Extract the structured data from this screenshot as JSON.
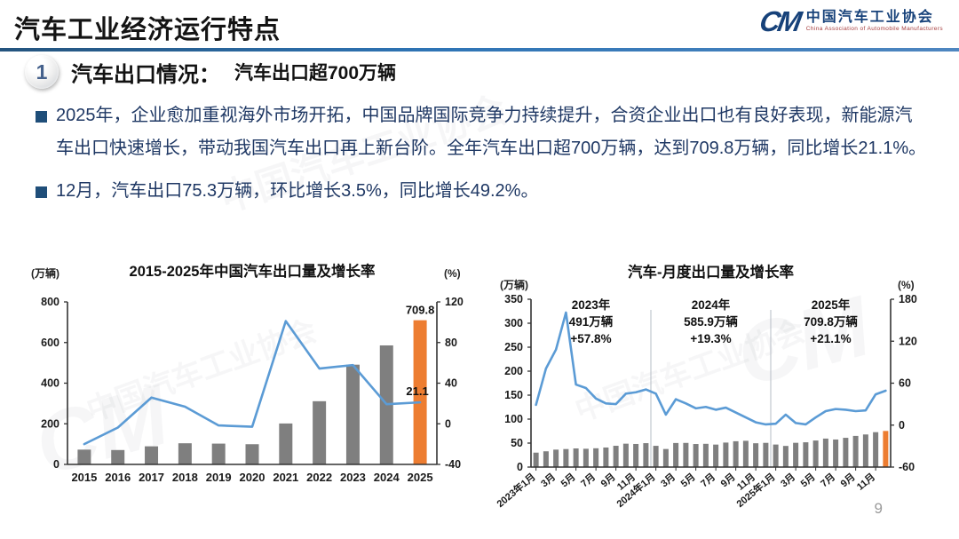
{
  "header": {
    "title": "汽车工业经济运行特点"
  },
  "logo": {
    "mark": "CM",
    "name_cn": "中国汽车工业协会",
    "name_en": "China Association of Automobile Manufacturers"
  },
  "section": {
    "number": "1",
    "title": "汽车出口情况：",
    "subtitle": "汽车出口超700万辆"
  },
  "bullets": [
    {
      "text": "2025年，企业愈加重视海外市场开拓，中国品牌国际竞争力持续提升，合资企业出口也有良好表现，新能源汽车出口快速增长，带动我国汽车出口再上新台阶。全年汽车出口超700万辆，达到709.8万辆，同比增长21.1%。"
    },
    {
      "text": "12月，汽车出口75.3万辆，环比增长3.5%，同比增长49.2%。"
    }
  ],
  "watermark_text": "中国汽车工业协会",
  "page_number": "9",
  "colors": {
    "accent_blue": "#2e74b5",
    "bar_gray": "#7f7f7f",
    "bar_orange": "#ed7d31",
    "line_blue": "#5b9bd5",
    "axis": "#333333",
    "separator": "#b5bcc4",
    "text_navy": "#1f3864"
  },
  "chart_data": [
    {
      "type": "bar",
      "subtype": "bar+line dual axis",
      "title": "2015-2025年中国汽车出口量及增长率",
      "y1_label": "(万辆)",
      "y2_label": "(%)",
      "categories": [
        "2015",
        "2016",
        "2017",
        "2018",
        "2019",
        "2020",
        "2021",
        "2022",
        "2023",
        "2024",
        "2025"
      ],
      "series": [
        {
          "name": "出口量(万辆)",
          "type": "bar",
          "axis": "y1",
          "values": [
            72.8,
            70.8,
            89.1,
            104.1,
            102.4,
            99.5,
            201.5,
            311.1,
            491.0,
            585.9,
            709.8
          ]
        },
        {
          "name": "增长率(%)",
          "type": "line",
          "axis": "y2",
          "values": [
            -20.0,
            -3.7,
            25.8,
            16.8,
            -1.6,
            -2.9,
            101.1,
            54.4,
            57.8,
            19.3,
            21.1
          ]
        }
      ],
      "y1": {
        "min": 0,
        "max": 800,
        "step": 200
      },
      "y2": {
        "min": -40,
        "max": 120,
        "step": 40
      },
      "point_labels": [
        {
          "text": "709.8",
          "index": 10,
          "attach": "bar"
        },
        {
          "text": "21.1",
          "index": 10,
          "attach": "line"
        }
      ],
      "highlight_last_bar": true,
      "grid": false,
      "legend": "none"
    },
    {
      "type": "bar",
      "subtype": "bar+line dual axis",
      "title": "汽车-月度出口量及增长率",
      "y1_label": "(万辆)",
      "y2_label": "(%)",
      "x_tick_labels": [
        "2023年1月",
        "3月",
        "5月",
        "7月",
        "9月",
        "11月",
        "2024年1月",
        "3月",
        "5月",
        "7月",
        "9月",
        "11月",
        "2025年1月",
        "3月",
        "5月",
        "7月",
        "9月",
        "11月"
      ],
      "x_tick_every": 2,
      "series": [
        {
          "name": "月度出口量(万辆)",
          "type": "bar",
          "axis": "y1",
          "values": [
            30.1,
            32.9,
            36.4,
            37.6,
            38.9,
            38.2,
            39.2,
            40.8,
            44.4,
            48.8,
            48.2,
            49.9,
            44.3,
            37.7,
            50.2,
            50.4,
            48.1,
            48.5,
            46.9,
            51.1,
            53.9,
            54.8,
            49.7,
            50.5,
            47.0,
            44.1,
            50.6,
            51.7,
            55.4,
            59.4,
            57.5,
            61.0,
            65.0,
            68.0,
            72.8,
            75.3
          ]
        },
        {
          "name": "同比增长率(%)",
          "type": "line",
          "axis": "y2",
          "values": [
            29,
            81,
            108,
            161,
            58,
            53,
            38,
            31,
            30,
            45,
            47,
            51,
            45,
            15,
            37,
            31,
            24,
            26,
            22,
            25,
            18,
            11,
            4,
            1,
            2,
            15,
            3,
            1,
            11,
            20,
            23,
            22,
            20,
            21,
            44,
            49.2
          ]
        }
      ],
      "y1": {
        "min": 0,
        "max": 350,
        "step": 50
      },
      "y2": {
        "min": -60,
        "max": 180,
        "step": 60
      },
      "year_annotations": [
        {
          "lines": [
            "2023年",
            "491万辆",
            "+57.8%"
          ]
        },
        {
          "lines": [
            "2024年",
            "585.9万辆",
            "+19.3%"
          ]
        },
        {
          "lines": [
            "2025年",
            "709.8万辆",
            "+21.1%"
          ]
        }
      ],
      "separators_after_index": [
        11,
        23
      ],
      "highlight_last_bar": true,
      "grid": false,
      "legend": "none"
    }
  ]
}
